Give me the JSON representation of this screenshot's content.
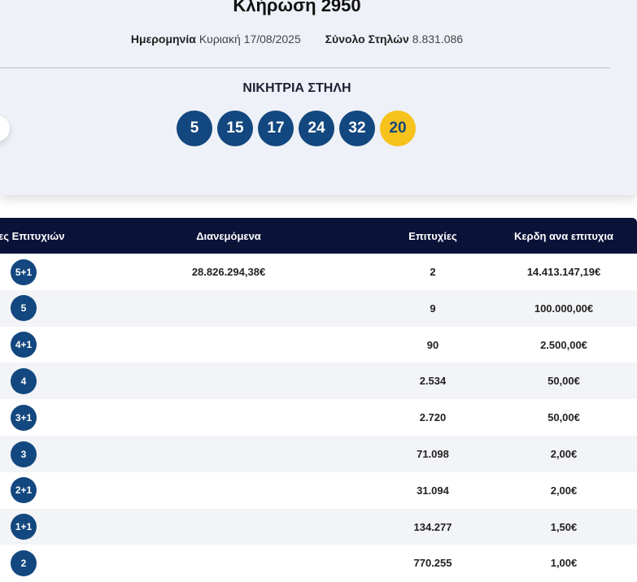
{
  "header": {
    "title": "Κλήρωση 2950",
    "date_label": "Ημερομηνία",
    "date": "Κυριακή 17/08/2025",
    "total_label": "Σύνολο Στηλών",
    "total": "8.831.086"
  },
  "winning": {
    "label": "ΝΙΚΗΤΡΙΑ ΣΤΗΛΗ",
    "numbers": [
      5,
      15,
      17,
      24,
      32
    ],
    "bonus": 20
  },
  "table": {
    "headers": [
      "ορίες Επιτυχιών",
      "Διανεμόμενα",
      "Επιτυχίες",
      "Κερδη ανα επιτυχια"
    ],
    "rows": [
      {
        "category": "5+1",
        "distributed": "28.826.294,38€",
        "winners": "2",
        "prize": "14.413.147,19€"
      },
      {
        "category": "5",
        "winners": "9",
        "prize": "100.000,00€"
      },
      {
        "category": "4+1",
        "winners": "90",
        "prize": "2.500,00€"
      },
      {
        "category": "4",
        "winners": "2.534",
        "prize": "50,00€"
      },
      {
        "category": "3+1",
        "winners": "2.720",
        "prize": "50,00€"
      },
      {
        "category": "3",
        "winners": "71.098",
        "prize": "2,00€"
      },
      {
        "category": "2+1",
        "winners": "31.094",
        "prize": "2,00€"
      },
      {
        "category": "1+1",
        "winners": "134.277",
        "prize": "1,50€"
      },
      {
        "category": "2",
        "winners": "770.255",
        "prize": "1,00€"
      }
    ]
  }
}
